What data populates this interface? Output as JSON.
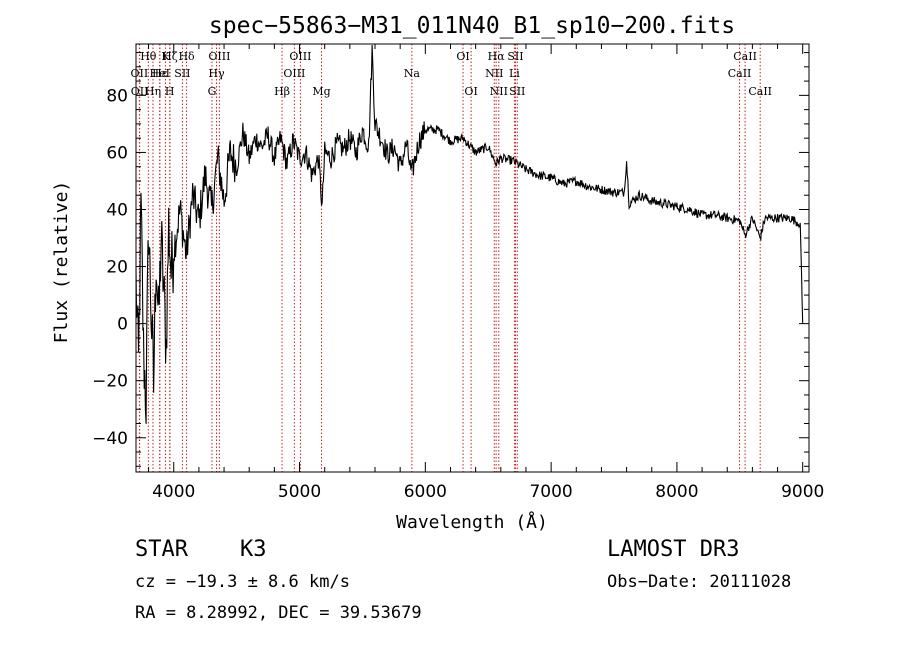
{
  "chart_data": {
    "type": "line",
    "title": "spec−55863−M31_011N40_B1_sp10−200.fits",
    "xlabel": "Wavelength (Å)",
    "ylabel": "Flux (relative)",
    "xlim": [
      3700,
      9050
    ],
    "ylim": [
      -52,
      98
    ],
    "xticks": [
      4000,
      5000,
      6000,
      7000,
      8000,
      9000
    ],
    "yticks": [
      -40,
      -20,
      0,
      20,
      40,
      60,
      80
    ],
    "x_minor_step": 200,
    "y_minor_step": 5,
    "series": [
      {
        "name": "spectrum",
        "x": [
          3700,
          3720,
          3740,
          3760,
          3780,
          3800,
          3820,
          3840,
          3860,
          3880,
          3900,
          3920,
          3940,
          3960,
          3980,
          4000,
          4050,
          4100,
          4150,
          4200,
          4250,
          4300,
          4350,
          4400,
          4450,
          4500,
          4550,
          4600,
          4650,
          4700,
          4750,
          4800,
          4850,
          4900,
          4950,
          5000,
          5050,
          5100,
          5150,
          5180,
          5200,
          5250,
          5300,
          5350,
          5400,
          5450,
          5500,
          5550,
          5577,
          5600,
          5650,
          5700,
          5750,
          5800,
          5850,
          5890,
          5950,
          6000,
          6100,
          6200,
          6300,
          6400,
          6500,
          6562,
          6600,
          6700,
          6800,
          6900,
          7000,
          7100,
          7200,
          7300,
          7400,
          7500,
          7580,
          7600,
          7620,
          7700,
          7800,
          7900,
          8000,
          8100,
          8200,
          8300,
          8400,
          8500,
          8542,
          8600,
          8662,
          8700,
          8800,
          8900,
          8980,
          9000
        ],
        "y": [
          15,
          -15,
          40,
          -10,
          -27,
          35,
          5,
          -22,
          25,
          0,
          30,
          12,
          -8,
          35,
          18,
          26,
          40,
          24,
          45,
          36,
          52,
          40,
          58,
          43,
          60,
          55,
          67,
          58,
          65,
          62,
          66,
          58,
          65,
          56,
          64,
          58,
          60,
          52,
          58,
          41,
          60,
          58,
          63,
          61,
          65,
          60,
          68,
          62,
          96,
          70,
          65,
          59,
          62,
          55,
          63,
          52,
          64,
          68,
          68,
          64,
          65,
          60,
          62,
          56,
          58,
          57,
          54,
          52,
          51,
          49,
          50,
          48,
          47,
          46,
          46,
          57,
          42,
          45,
          43,
          42,
          41,
          40,
          38,
          38,
          37,
          36,
          31,
          37,
          30,
          37,
          37,
          37,
          35,
          0
        ]
      }
    ],
    "lines": [
      {
        "label": "Hθ",
        "wl": 3798,
        "row": 0
      },
      {
        "label": "OII",
        "wl": 3727,
        "row": 1
      },
      {
        "label": "OII",
        "wl": 3729,
        "row": 2
      },
      {
        "label": "Hε",
        "wl": 3889,
        "row": 1
      },
      {
        "label": "Hη",
        "wl": 3835,
        "row": 2
      },
      {
        "label": "Hζ",
        "wl": 3970,
        "row": 0
      },
      {
        "label": "K",
        "wl": 3934,
        "row": 0
      },
      {
        "label": "HeI",
        "wl": 3889,
        "row": 1
      },
      {
        "label": "H",
        "wl": 3968,
        "row": 2
      },
      {
        "label": "Hδ",
        "wl": 4102,
        "row": 0
      },
      {
        "label": "SII",
        "wl": 4069,
        "row": 1
      },
      {
        "label": "OIII",
        "wl": 4363,
        "row": 0
      },
      {
        "label": "Hγ",
        "wl": 4340,
        "row": 1
      },
      {
        "label": "G",
        "wl": 4304,
        "row": 2
      },
      {
        "label": "Hβ",
        "wl": 4861,
        "row": 2
      },
      {
        "label": "OIII",
        "wl": 5007,
        "row": 0
      },
      {
        "label": "OIII",
        "wl": 4959,
        "row": 1
      },
      {
        "label": "Mg",
        "wl": 5175,
        "row": 2
      },
      {
        "label": "Na",
        "wl": 5893,
        "row": 1
      },
      {
        "label": "OI",
        "wl": 6300,
        "row": 0
      },
      {
        "label": "OI",
        "wl": 6364,
        "row": 2
      },
      {
        "label": "Hα",
        "wl": 6563,
        "row": 0
      },
      {
        "label": "NII",
        "wl": 6548,
        "row": 1
      },
      {
        "label": "NII",
        "wl": 6584,
        "row": 2
      },
      {
        "label": "SII",
        "wl": 6717,
        "row": 0
      },
      {
        "label": "Li",
        "wl": 6708,
        "row": 1
      },
      {
        "label": "SII",
        "wl": 6731,
        "row": 2
      },
      {
        "label": "CaII",
        "wl": 8542,
        "row": 0
      },
      {
        "label": "CaII",
        "wl": 8498,
        "row": 1
      },
      {
        "label": "CaII",
        "wl": 8662,
        "row": 2
      }
    ]
  },
  "footer": {
    "object_class": "STAR",
    "object_subclass": "K3",
    "survey": "LAMOST DR3",
    "cz": "cz = −19.3 ± 8.6 km/s",
    "obs_date": "Obs−Date: 20111028",
    "coords": "RA =   8.28992, DEC =  39.53679"
  },
  "colors": {
    "foreground": "#000000",
    "line_marker": "#cc2222",
    "background": "#ffffff"
  }
}
